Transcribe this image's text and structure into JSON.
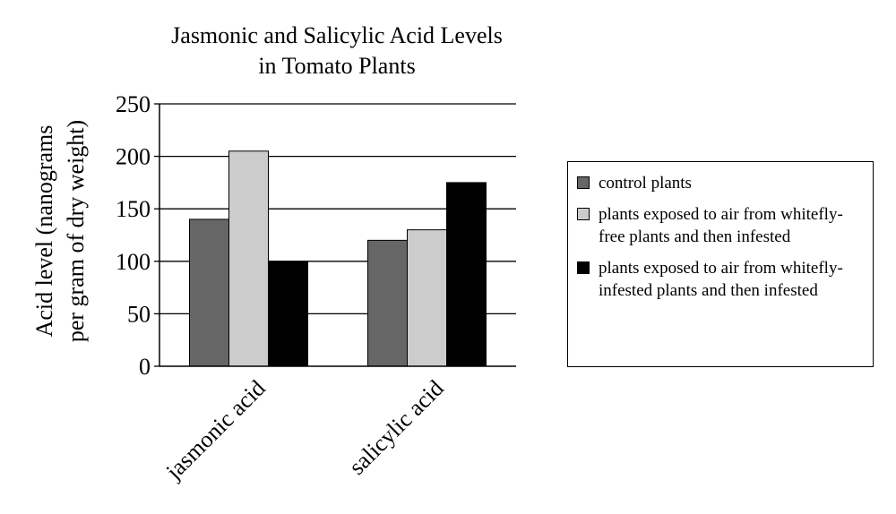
{
  "chart_data": {
    "type": "bar",
    "title_lines": [
      "Jasmonic and Salicylic Acid Levels",
      "in Tomato Plants"
    ],
    "ylabel_lines": [
      "Acid level (nanograms",
      "per gram of dry weight)"
    ],
    "xlabel": "",
    "categories": [
      "jasmonic acid",
      "salicylic acid"
    ],
    "ylim": [
      0,
      250
    ],
    "yticks": [
      0,
      50,
      100,
      150,
      200,
      250
    ],
    "grid": true,
    "legend_position": "right",
    "series": [
      {
        "name": "control plants",
        "values": [
          140,
          120
        ],
        "color": "#666666"
      },
      {
        "name": "plants exposed to air from whitefly-free plants and then infested",
        "values": [
          205,
          130
        ],
        "color": "#cccccc"
      },
      {
        "name": "plants exposed to air from whitefly-infested plants and then infested",
        "values": [
          100,
          175
        ],
        "color": "#000000"
      }
    ]
  }
}
